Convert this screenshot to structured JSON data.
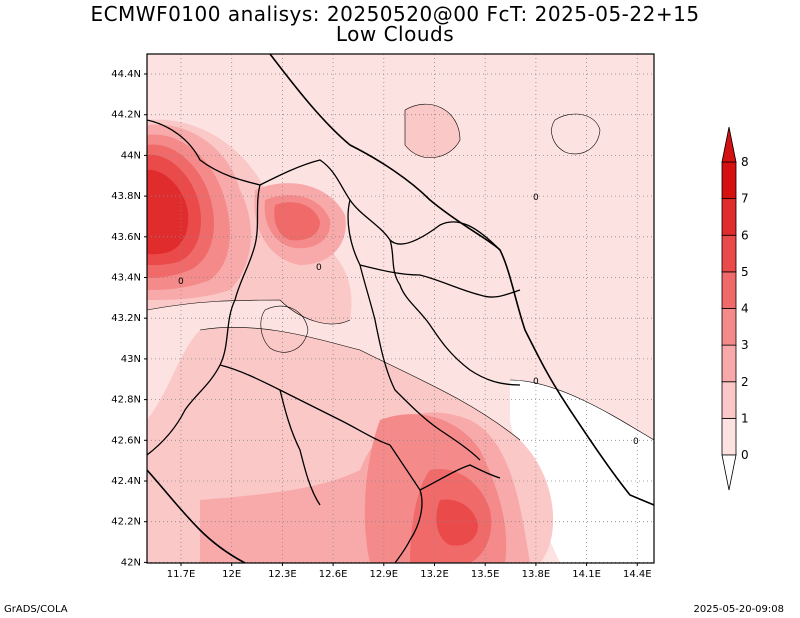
{
  "title": "ECMWF0100 analisys: 20250520@00 FcT: 2025-05-22+15",
  "subtitle": "Low Clouds",
  "footer_left": "GrADS/COLA",
  "footer_right": "2025-05-20-09:08",
  "lat_labels": [
    "44.4N",
    "44.2N",
    "44N",
    "43.8N",
    "43.6N",
    "43.4N",
    "43.2N",
    "43N",
    "42.8N",
    "42.6N",
    "42.4N",
    "42.2N",
    "42N"
  ],
  "lon_labels": [
    "11.7E",
    "12E",
    "12.3E",
    "12.6E",
    "12.9E",
    "13.2E",
    "13.5E",
    "13.8E",
    "14.1E",
    "14.4E"
  ],
  "colorbar": {
    "labels": [
      "0",
      "1",
      "2",
      "3",
      "4",
      "5",
      "6",
      "7",
      "8"
    ],
    "colors": [
      "#ffffff",
      "#fde2e2",
      "#fbc8c8",
      "#f8aaaa",
      "#f58a8a",
      "#f06a6a",
      "#ea4a4a",
      "#e02c2c",
      "#d41010"
    ]
  },
  "contour_labels": [
    "0",
    "0",
    "0",
    "0",
    "0"
  ]
}
